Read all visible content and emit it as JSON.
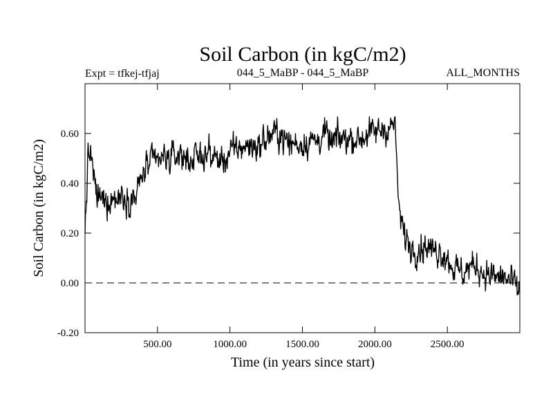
{
  "chart_data": {
    "type": "line",
    "title": "Soil Carbon (in kgC/m2)",
    "subtitle_left": "Expt = tfkej-tfjaj",
    "subtitle_center": "044_5_MaBP - 044_5_MaBP",
    "subtitle_right": "ALL_MONTHS",
    "xlabel": "Time (in years since start)",
    "ylabel": "Soil Carbon (in kgC/m2)",
    "xlim": [
      0,
      3000
    ],
    "ylim": [
      -0.2,
      0.8
    ],
    "x_ticks": [
      500,
      1000,
      1500,
      2000,
      2500
    ],
    "x_tick_labels": [
      "500.00",
      "1000.00",
      "1500.00",
      "2000.00",
      "2500.00"
    ],
    "y_ticks": [
      -0.2,
      0.0,
      0.2,
      0.4,
      0.6
    ],
    "y_tick_labels": [
      "-0.20",
      "0.00",
      "0.20",
      "0.40",
      "0.60"
    ],
    "reference_line": {
      "y": 0.0,
      "style": "dashed"
    },
    "grid": false,
    "series": [
      {
        "x": [
          0,
          20,
          40,
          60,
          80,
          100,
          120,
          150,
          180,
          200,
          230,
          260,
          290,
          320,
          350,
          380,
          400,
          430,
          460,
          500,
          550,
          600,
          650,
          700,
          750,
          800,
          850,
          900,
          950,
          1000,
          1050,
          1100,
          1150,
          1200,
          1250,
          1300,
          1350,
          1400,
          1450,
          1500,
          1550,
          1600,
          1650,
          1700,
          1750,
          1800,
          1850,
          1900,
          1950,
          2000,
          2050,
          2100,
          2140,
          2150,
          2160,
          2170,
          2180,
          2200,
          2250,
          2300,
          2350,
          2400,
          2450,
          2500,
          2550,
          2600,
          2650,
          2700,
          2750,
          2800,
          2850,
          2900,
          2950,
          3000
        ],
        "y": [
          0.2,
          0.5,
          0.52,
          0.42,
          0.35,
          0.34,
          0.33,
          0.33,
          0.34,
          0.34,
          0.34,
          0.36,
          0.34,
          0.34,
          0.35,
          0.4,
          0.44,
          0.47,
          0.48,
          0.49,
          0.5,
          0.5,
          0.52,
          0.5,
          0.5,
          0.51,
          0.52,
          0.5,
          0.49,
          0.52,
          0.54,
          0.55,
          0.55,
          0.55,
          0.58,
          0.6,
          0.6,
          0.56,
          0.56,
          0.56,
          0.57,
          0.57,
          0.6,
          0.56,
          0.58,
          0.58,
          0.58,
          0.58,
          0.6,
          0.6,
          0.62,
          0.62,
          0.64,
          0.5,
          0.35,
          0.3,
          0.25,
          0.2,
          0.14,
          0.14,
          0.15,
          0.13,
          0.13,
          0.1,
          0.06,
          0.04,
          0.06,
          0.07,
          0.04,
          0.03,
          0.02,
          0.02,
          0.0,
          -0.04
        ]
      }
    ]
  }
}
